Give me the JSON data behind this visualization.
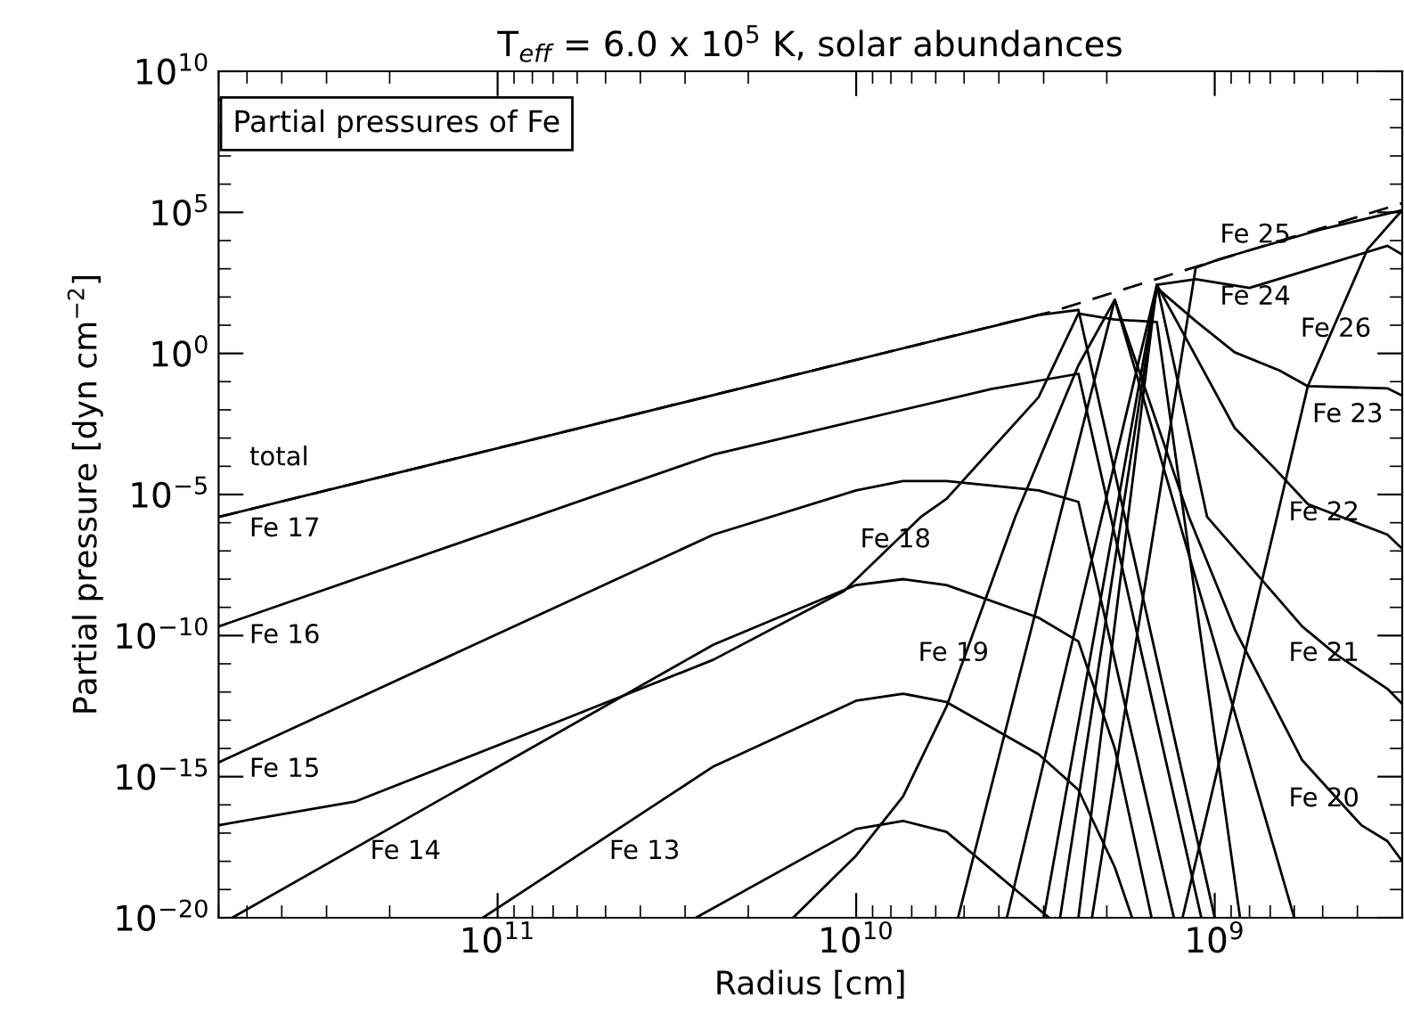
{
  "chart_data": {
    "type": "line",
    "title": "T$_{eff}$ = 6.0 x 10$^{5}$ K, solar abundances",
    "xlabel": "Radius [cm]",
    "ylabel": "Partial pressure [dyn cm$^{−2}$]",
    "log": "xy",
    "xlim": [
      600000000000.0,
      300000000.0
    ],
    "ylim": [
      1e-20,
      10000000000.0
    ],
    "xticks": [
      {
        "value": 100000000000.0,
        "label": "10$^{11}$"
      },
      {
        "value": 10000000000.0,
        "label": "10$^{10}$"
      },
      {
        "value": 1000000000.0,
        "label": "10$^{9}$"
      }
    ],
    "yticks": [
      {
        "value": 1e-20,
        "label": "10$^{−20}$"
      },
      {
        "value": 1e-15,
        "label": "10$^{−15}$"
      },
      {
        "value": 1e-10,
        "label": "10$^{−10}$"
      },
      {
        "value": 1e-05,
        "label": "10$^{−5}$"
      },
      {
        "value": 1,
        "label": "10$^{0}$"
      },
      {
        "value": 100000.0,
        "label": "10$^{5}$"
      },
      {
        "value": 10000000000.0,
        "label": "10$^{10}$"
      }
    ],
    "grid": false,
    "legend": false,
    "marker": "none",
    "series": [
      {
        "color": "#000000",
        "line_style": "dashed",
        "x": [
          600000000000.0,
          2800000000.0,
          1000000000.0,
          300000000.0
        ],
        "values": [
          1.6e-06,
          32,
          1900,
          210000.0
        ]
      },
      {
        "color": "#000000",
        "x": [
          600000000000.0,
          3100000000.0,
          2400000000.0,
          1000000000.0
        ],
        "values": [
          1.6e-06,
          23,
          35,
          1e-20
        ]
      },
      {
        "color": "#000000",
        "x": [
          600000000000.0,
          25000000000.0,
          4200000000.0,
          2400000000.0,
          1090000000.0
        ],
        "values": [
          2.1e-10,
          0.00026,
          0.055,
          0.19,
          1e-20
        ]
      },
      {
        "color": "#000000",
        "x": [
          600000000000.0,
          25000000000.0,
          10000000000.0,
          7400000000.0,
          5600000000.0,
          3100000000.0,
          2400000000.0,
          1300000000.0
        ],
        "values": [
          3.2e-15,
          3.8e-07,
          1.4e-05,
          3e-05,
          3e-05,
          1.4e-05,
          5.5e-06,
          1e-20
        ]
      },
      {
        "color": "#000000",
        "x": [
          550000000000.0,
          25000000000.0,
          10000000000.0,
          7400000000.0,
          5600000000.0,
          3100000000.0,
          2400000000.0,
          1900000000.0,
          1500000000.0
        ],
        "values": [
          1e-20,
          4.8e-11,
          6.2e-09,
          1e-08,
          6.2e-09,
          4.3e-10,
          6.2e-11,
          1e-14,
          1e-20
        ]
      },
      {
        "color": "#000000",
        "x": [
          110000000000.0,
          25000000000.0,
          10000000000.0,
          7400000000.0,
          5600000000.0,
          3100000000.0,
          2400000000.0,
          1900000000.0,
          1700000000.0
        ],
        "values": [
          1e-20,
          2.3e-15,
          4.9e-13,
          8.7e-13,
          4.4e-13,
          6.2e-15,
          3.4e-16,
          6.2e-19,
          1e-20
        ]
      },
      {
        "color": "#000000",
        "x": [
          28000000000.0,
          10000000000.0,
          7400000000.0,
          5600000000.0,
          2900000000.0
        ],
        "values": [
          1e-20,
          1.4e-17,
          2.7e-17,
          1.1e-17,
          1e-20
        ]
      },
      {
        "color": "#000000",
        "x": [
          600000000000.0,
          250000000000.0,
          65000000000.0,
          25000000000.0,
          10800000000.0,
          6600000000.0,
          5600000000.0,
          3100000000.0,
          2400000000.0,
          1900000000.0,
          1450000000.0,
          850000000.0
        ],
        "values": [
          1.9e-17,
          1.3e-16,
          1.1e-13,
          1.4e-11,
          3.8e-09,
          1.6e-06,
          7e-06,
          0.028,
          26,
          16,
          13,
          1e-20
        ]
      },
      {
        "color": "#000000",
        "x": [
          15000000000.0,
          10000000000.0,
          7400000000.0,
          5600000000.0,
          3600000000.0,
          2400000000.0,
          1900000000.0,
          600000000.0
        ],
        "values": [
          1e-20,
          1.6e-18,
          2e-16,
          3e-13,
          1.6e-06,
          0.38,
          80,
          1e-20
        ]
      },
      {
        "color": "#000000",
        "x": [
          5200000000.0,
          1900000000.0,
          1180000000.0,
          880000000.0,
          570000000.0,
          390000000.0,
          330000000.0,
          300000000.0
        ],
        "values": [
          1e-20,
          80,
          1.6e-06,
          1.7e-10,
          3.8e-15,
          1.9e-17,
          5.2e-18,
          1e-18
        ]
      },
      {
        "color": "#000000",
        "x": [
          3800000000.0,
          1450000000.0,
          1050000000.0,
          570000000.0,
          460000000.0,
          330000000.0,
          300000000.0
        ],
        "values": [
          1e-20,
          270,
          1.6e-06,
          2.1e-10,
          2.2e-11,
          1.3e-12,
          3.8e-13
        ]
      },
      {
        "color": "#000000",
        "x": [
          3000000000.0,
          1450000000.0,
          880000000.0,
          680000000.0,
          550000000.0,
          330000000.0,
          300000000.0
        ],
        "values": [
          1e-20,
          270,
          0.0023,
          8.3e-05,
          4.6e-06,
          3.8e-07,
          1.2e-07
        ]
      },
      {
        "color": "#000000",
        "x": [
          2700000000.0,
          1450000000.0,
          1130000000.0,
          880000000.0,
          660000000.0,
          550000000.0,
          330000000.0,
          300000000.0
        ],
        "values": [
          1e-20,
          210,
          14,
          1.1,
          0.25,
          0.069,
          0.058,
          0.032
        ]
      },
      {
        "color": "#000000",
        "x": [
          2400000000.0,
          1450000000.0,
          1130000000.0,
          800000000.0,
          330000000.0,
          300000000.0
        ],
        "values": [
          1e-20,
          270,
          430,
          210,
          6500,
          3200
        ]
      },
      {
        "color": "#000000",
        "x": [
          2200000000.0,
          1130000000.0,
          960000000.0,
          510000000.0,
          300000000.0
        ],
        "values": [
          1e-20,
          1100,
          2300,
          24000.0,
          120000.0
        ]
      },
      {
        "color": "#000000",
        "x": [
          1230000000.0,
          550000000.0,
          375000000.0,
          300000000.0
        ],
        "values": [
          1e-20,
          0.069,
          4900,
          120000.0
        ]
      }
    ],
    "annotations": [
      "Partial pressures of Fe",
      "total",
      "Fe 17",
      "Fe 16",
      "Fe 15",
      "Fe 14",
      "Fe 13",
      "Fe 18",
      "Fe 19",
      "Fe 20",
      "Fe 21",
      "Fe 22",
      "Fe 23",
      "Fe 26",
      "Fe 24",
      "Fe 25"
    ]
  }
}
